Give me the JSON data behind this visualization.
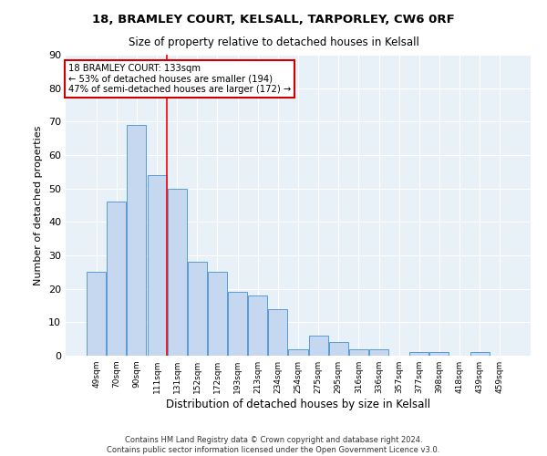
{
  "title_line1": "18, BRAMLEY COURT, KELSALL, TARPORLEY, CW6 0RF",
  "title_line2": "Size of property relative to detached houses in Kelsall",
  "xlabel": "Distribution of detached houses by size in Kelsall",
  "ylabel": "Number of detached properties",
  "bar_labels": [
    "49sqm",
    "70sqm",
    "90sqm",
    "111sqm",
    "131sqm",
    "152sqm",
    "172sqm",
    "193sqm",
    "213sqm",
    "234sqm",
    "254sqm",
    "275sqm",
    "295sqm",
    "316sqm",
    "336sqm",
    "357sqm",
    "377sqm",
    "398sqm",
    "418sqm",
    "439sqm",
    "459sqm"
  ],
  "bar_values": [
    25,
    46,
    69,
    54,
    50,
    28,
    25,
    19,
    18,
    14,
    2,
    6,
    4,
    2,
    2,
    0,
    1,
    1,
    0,
    1,
    0
  ],
  "bar_color": "#c5d8f0",
  "bar_edge_color": "#5a9bd5",
  "annotation_text_line1": "18 BRAMLEY COURT: 133sqm",
  "annotation_text_line2": "← 53% of detached houses are smaller (194)",
  "annotation_text_line3": "47% of semi-detached houses are larger (172) →",
  "annotation_box_color": "#ffffff",
  "annotation_box_edge": "#cc0000",
  "red_line_x": 3.5,
  "ylim": [
    0,
    90
  ],
  "yticks": [
    0,
    10,
    20,
    30,
    40,
    50,
    60,
    70,
    80,
    90
  ],
  "background_color": "#e8f0f8",
  "grid_color": "#ffffff",
  "fig_background": "#ffffff",
  "footer_line1": "Contains HM Land Registry data © Crown copyright and database right 2024.",
  "footer_line2": "Contains public sector information licensed under the Open Government Licence v3.0."
}
